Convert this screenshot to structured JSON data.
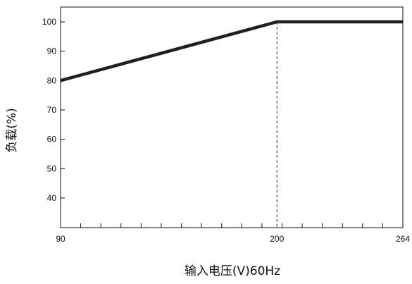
{
  "chart_data": {
    "type": "line",
    "xlabel": "输入电压(V)60Hz",
    "ylabel": "负载(%)",
    "x_ticks": [
      90,
      200,
      264
    ],
    "x_tick_labels": [
      "90",
      "200",
      "264"
    ],
    "y_ticks": [
      40,
      50,
      60,
      70,
      80,
      90,
      100
    ],
    "y_tick_labels": [
      "40",
      "50",
      "60",
      "70",
      "80",
      "90",
      "100"
    ],
    "xlim": [
      90,
      264
    ],
    "ylim": [
      30,
      105
    ],
    "series": [
      {
        "x": [
          90,
          200,
          264
        ],
        "y": [
          80,
          100,
          100
        ]
      }
    ],
    "reference_lines": [
      {
        "x": 200,
        "y_from": 30,
        "y_to": 100,
        "style": "dashed"
      }
    ],
    "grid": false,
    "colors": {
      "line": "#231f20",
      "axis": "#111111"
    }
  }
}
